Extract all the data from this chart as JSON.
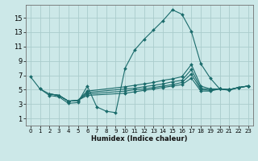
{
  "title": "",
  "xlabel": "Humidex (Indice chaleur)",
  "background_color": "#cce8e8",
  "grid_color": "#aacccc",
  "line_color": "#1a6b6b",
  "x_ticks": [
    0,
    1,
    2,
    3,
    4,
    5,
    6,
    7,
    8,
    9,
    10,
    11,
    12,
    13,
    14,
    15,
    16,
    17,
    18,
    19,
    20,
    21,
    22,
    23
  ],
  "y_ticks": [
    1,
    3,
    5,
    7,
    9,
    11,
    13,
    15
  ],
  "xlim": [
    -0.5,
    23.5
  ],
  "ylim": [
    0.0,
    16.8
  ],
  "lines": [
    {
      "x": [
        0,
        1,
        2,
        3,
        4,
        5,
        6,
        7,
        8,
        9,
        10,
        11,
        12,
        13,
        14,
        15,
        16,
        17,
        18,
        19,
        20,
        21,
        22,
        23
      ],
      "y": [
        6.8,
        5.1,
        4.2,
        4.0,
        3.1,
        3.2,
        5.5,
        2.6,
        2.0,
        1.8,
        8.0,
        10.5,
        12.0,
        13.3,
        14.6,
        16.1,
        15.5,
        13.1,
        8.6,
        6.6,
        5.1,
        4.9,
        5.3,
        5.5
      ]
    },
    {
      "x": [
        1,
        2,
        3,
        4,
        5,
        6,
        10,
        11,
        12,
        13,
        14,
        15,
        16,
        17,
        18,
        19,
        20,
        21,
        22,
        23
      ],
      "y": [
        5.1,
        4.4,
        4.2,
        3.4,
        3.5,
        4.8,
        5.4,
        5.6,
        5.8,
        6.0,
        6.3,
        6.5,
        6.8,
        8.5,
        5.5,
        5.1,
        5.1,
        5.0,
        5.3,
        5.5
      ]
    },
    {
      "x": [
        2,
        3,
        4,
        5,
        6,
        10,
        11,
        12,
        13,
        14,
        15,
        16,
        17,
        18,
        19,
        20,
        21,
        22,
        23
      ],
      "y": [
        4.4,
        4.2,
        3.4,
        3.5,
        4.6,
        5.1,
        5.2,
        5.4,
        5.6,
        5.8,
        6.1,
        6.3,
        7.8,
        5.2,
        5.0,
        5.1,
        5.0,
        5.3,
        5.5
      ]
    },
    {
      "x": [
        2,
        3,
        4,
        5,
        6,
        10,
        11,
        12,
        13,
        14,
        15,
        16,
        17,
        18,
        19,
        20,
        21,
        22,
        23
      ],
      "y": [
        4.4,
        4.2,
        3.4,
        3.5,
        4.4,
        4.8,
        5.0,
        5.1,
        5.3,
        5.5,
        5.7,
        6.0,
        7.2,
        5.0,
        4.9,
        5.1,
        5.0,
        5.3,
        5.5
      ]
    },
    {
      "x": [
        2,
        3,
        4,
        5,
        6,
        10,
        11,
        12,
        13,
        14,
        15,
        16,
        17,
        18,
        19,
        20,
        21,
        22,
        23
      ],
      "y": [
        4.4,
        4.2,
        3.4,
        3.5,
        4.2,
        4.5,
        4.7,
        4.9,
        5.1,
        5.3,
        5.5,
        5.7,
        6.6,
        4.8,
        4.8,
        5.1,
        5.0,
        5.3,
        5.5
      ]
    }
  ]
}
